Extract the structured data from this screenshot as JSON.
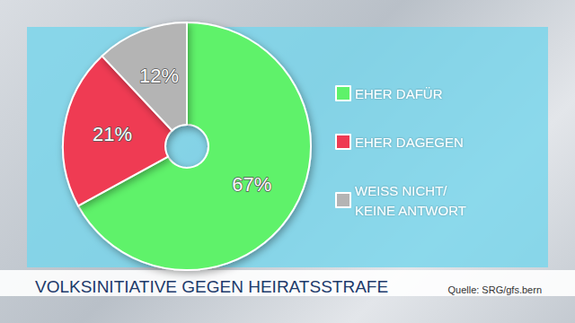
{
  "chart_data": {
    "type": "pie",
    "title": "VOLKSINITIATIVE GEGEN HEIRATSSTRAFE",
    "annotations": [
      "Quelle: SRG/gfs.bern"
    ],
    "categories": [
      "EHER DAFÜR",
      "EHER DAGEGEN",
      "WEISS NICHT/ KEINE ANTWORT"
    ],
    "values": [
      67,
      21,
      12
    ],
    "value_labels": [
      "67%",
      "21%",
      "12%"
    ],
    "colors": [
      "#5ef26a",
      "#ef3a52",
      "#b4b4b4"
    ],
    "data_labels": true,
    "legend": "right"
  }
}
